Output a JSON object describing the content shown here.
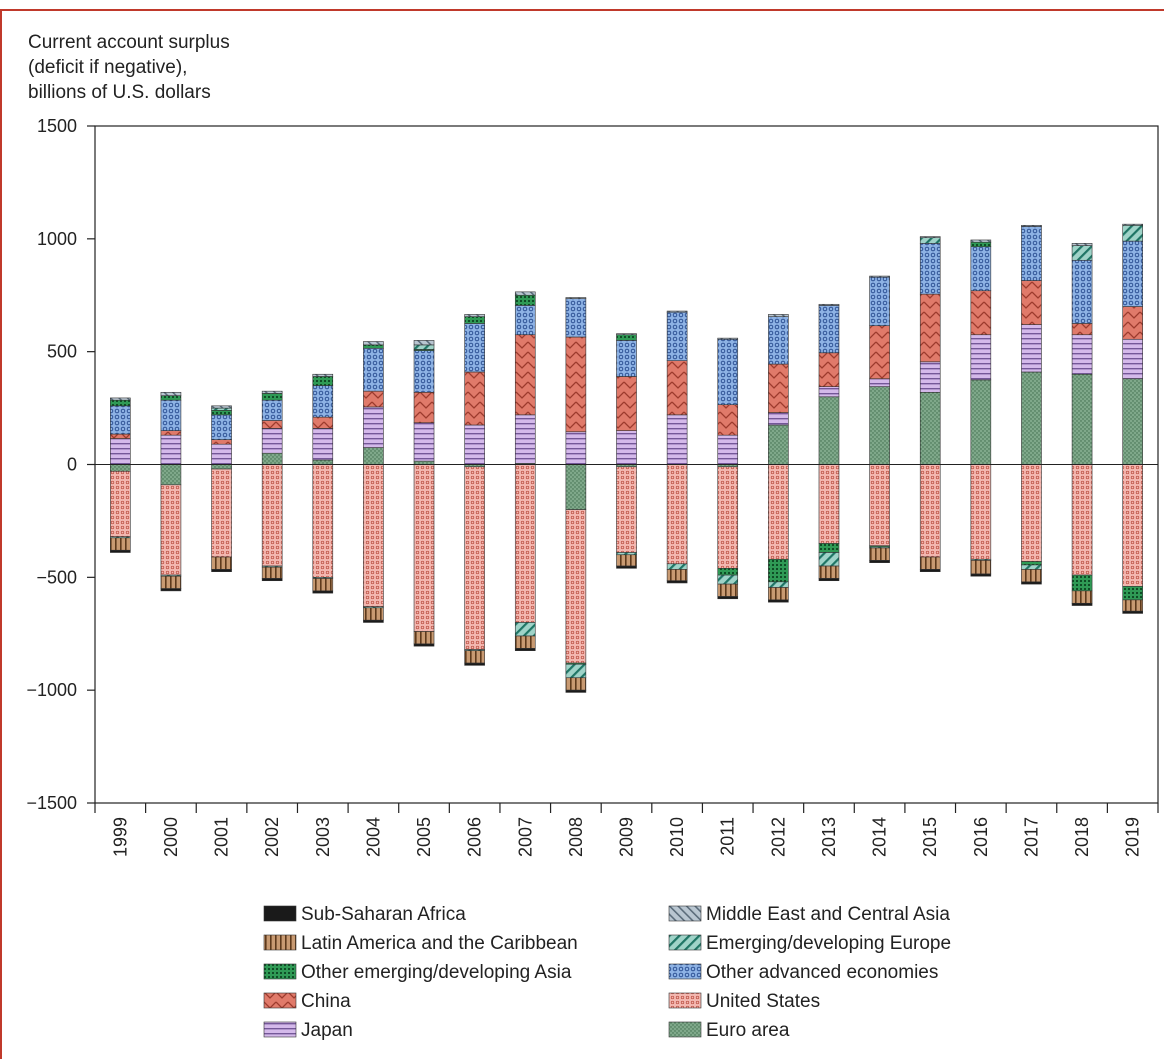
{
  "chart_data": {
    "type": "bar",
    "stacked": true,
    "ylabel_lines": [
      "Current account surplus",
      "(deficit if negative),",
      "billions of U.S. dollars"
    ],
    "ylim": [
      -1500,
      1500
    ],
    "yticks": [
      1500,
      1000,
      500,
      0,
      -500,
      -1000,
      -1500
    ],
    "ytick_labels": [
      "1500",
      "1000",
      "500",
      "0",
      "−500",
      "−1000",
      "−1500"
    ],
    "categories": [
      "1999",
      "2000",
      "2001",
      "2002",
      "2003",
      "2004",
      "2005",
      "2006",
      "2007",
      "2008",
      "2009",
      "2010",
      "2011",
      "2012",
      "2013",
      "2014",
      "2015",
      "2016",
      "2017",
      "2018",
      "2019"
    ],
    "grid": false,
    "legend_position": "bottom",
    "series": [
      {
        "name": "Euro area",
        "key": "euro",
        "color": "#7fa88a",
        "values": [
          -30,
          -90,
          -20,
          50,
          20,
          75,
          15,
          -10,
          5,
          -200,
          -10,
          0,
          -10,
          175,
          300,
          345,
          320,
          375,
          410,
          400,
          380
        ]
      },
      {
        "name": "Japan",
        "key": "japan",
        "color": "#c7a8e0",
        "values": [
          115,
          130,
          90,
          110,
          140,
          180,
          170,
          175,
          215,
          145,
          150,
          220,
          130,
          55,
          45,
          35,
          135,
          200,
          210,
          175,
          175
        ]
      },
      {
        "name": "China",
        "key": "china",
        "color": "#e07a6a",
        "values": [
          20,
          20,
          20,
          35,
          50,
          70,
          135,
          235,
          355,
          420,
          240,
          240,
          135,
          215,
          150,
          235,
          300,
          195,
          195,
          50,
          145
        ]
      },
      {
        "name": "United States",
        "key": "us",
        "color": "#eea7a0",
        "values": [
          -290,
          -400,
          -390,
          -450,
          -500,
          -630,
          -740,
          -810,
          -700,
          -680,
          -380,
          -440,
          -450,
          -420,
          -350,
          -360,
          -410,
          -420,
          -430,
          -490,
          -540
        ]
      },
      {
        "name": "Other advanced economies",
        "key": "oae",
        "color": "#7ea3d9",
        "values": [
          125,
          135,
          110,
          90,
          140,
          190,
          185,
          215,
          130,
          170,
          160,
          215,
          290,
          210,
          210,
          215,
          225,
          195,
          240,
          280,
          290
        ]
      },
      {
        "name": "Other emerging/developing Asia",
        "key": "oeda",
        "color": "#33a35c",
        "values": [
          25,
          20,
          20,
          30,
          40,
          15,
          5,
          30,
          45,
          -5,
          25,
          0,
          -30,
          -100,
          -40,
          -5,
          0,
          20,
          -15,
          -70,
          -60
        ]
      },
      {
        "name": "Emerging/developing Europe",
        "key": "ede",
        "color": "#5fb3a3",
        "values": [
          -5,
          -5,
          10,
          -5,
          -5,
          -5,
          20,
          -5,
          -60,
          -60,
          -10,
          -25,
          -40,
          -25,
          -60,
          -5,
          25,
          -5,
          -20,
          65,
          70
        ]
      },
      {
        "name": "Middle East and Central Asia",
        "key": "meca",
        "color": "#a9b7c4",
        "values": [
          10,
          15,
          10,
          10,
          10,
          15,
          20,
          10,
          15,
          5,
          5,
          5,
          5,
          10,
          5,
          5,
          5,
          10,
          5,
          10,
          5
        ]
      },
      {
        "name": "Latin America and the Caribbean",
        "key": "lac",
        "color": "#b88963",
        "values": [
          -55,
          -55,
          -55,
          -50,
          -55,
          -55,
          -55,
          -55,
          -55,
          -55,
          -50,
          -50,
          -55,
          -55,
          -55,
          -55,
          -55,
          -60,
          -55,
          -55,
          -50
        ]
      },
      {
        "name": "Sub-Saharan Africa",
        "key": "ssa",
        "color": "#222222",
        "values": [
          -10,
          -10,
          -10,
          -10,
          -10,
          -10,
          -10,
          -10,
          -10,
          -10,
          -10,
          -10,
          -10,
          -10,
          -10,
          -10,
          -10,
          -10,
          -10,
          -10,
          -10
        ]
      }
    ],
    "legend_left_column": [
      "ssa",
      "lac",
      "oeda",
      "china",
      "japan"
    ],
    "legend_right_column": [
      "meca",
      "ede",
      "oae",
      "us",
      "euro"
    ]
  }
}
